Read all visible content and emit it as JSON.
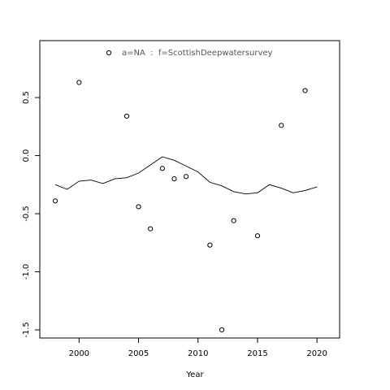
{
  "chart_data": {
    "type": "scatter",
    "xlabel": "Year",
    "ylabel": "",
    "xlim": [
      1996.7,
      2021.9
    ],
    "ylim": [
      -1.57,
      0.99
    ],
    "xticks": [
      2000,
      2005,
      2010,
      2015,
      2020
    ],
    "yticks": [
      -1.5,
      -1.0,
      -0.5,
      0.0,
      0.5
    ],
    "ytick_labels": [
      "-1.5",
      "-1.0",
      "-0.5",
      "0.0",
      "0.5"
    ],
    "grid": false,
    "legend": {
      "placement": "top",
      "entries": [
        {
          "text": "a=NA  :  f=ScottishDeepwatersurvey",
          "marker": "circle"
        }
      ]
    },
    "series": [
      {
        "kind": "points",
        "marker": "open-circle",
        "x": [
          1998,
          2000,
          2004,
          2005,
          2006,
          2007,
          2008,
          2009,
          2011,
          2012,
          2013,
          2015,
          2017,
          2019
        ],
        "y": [
          -0.39,
          0.63,
          0.34,
          -0.44,
          -0.63,
          -0.11,
          -0.2,
          -0.18,
          -0.77,
          -1.5,
          -0.56,
          -0.69,
          0.26,
          0.56
        ]
      },
      {
        "kind": "line",
        "x": [
          1998,
          1999,
          2000,
          2001,
          2002,
          2003,
          2004,
          2005,
          2006,
          2007,
          2008,
          2009,
          2010,
          2011,
          2012,
          2013,
          2014,
          2015,
          2016,
          2017,
          2018,
          2019,
          2020
        ],
        "y": [
          -0.25,
          -0.29,
          -0.22,
          -0.21,
          -0.24,
          -0.2,
          -0.19,
          -0.15,
          -0.08,
          -0.01,
          -0.04,
          -0.09,
          -0.14,
          -0.23,
          -0.26,
          -0.31,
          -0.33,
          -0.32,
          -0.25,
          -0.28,
          -0.32,
          -0.3,
          -0.27
        ]
      }
    ]
  }
}
